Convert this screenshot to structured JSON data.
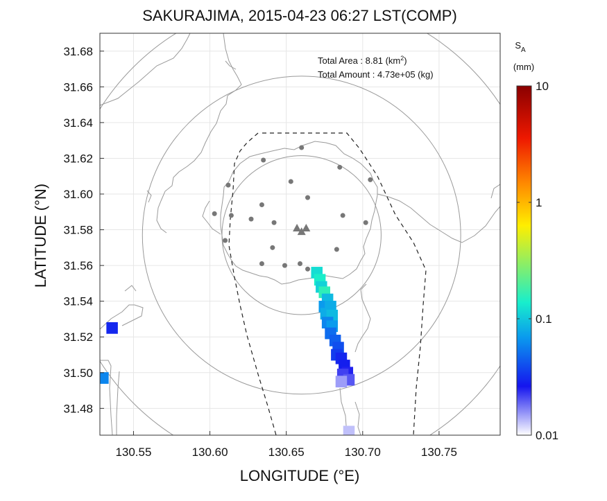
{
  "chart_data": {
    "type": "map",
    "title": "SAKURAJIMA, 2015-04-23 06:27 LST(COMP)",
    "xlabel": "LONGITUDE (°E)",
    "ylabel": "LATITUDE (°N)",
    "xlim": [
      130.528,
      130.79
    ],
    "ylim": [
      31.465,
      31.69
    ],
    "xticks": [
      130.55,
      130.6,
      130.65,
      130.7,
      130.75
    ],
    "xtick_labels": [
      "130.55",
      "130.60",
      "130.65",
      "130.70",
      "130.75"
    ],
    "yticks": [
      31.48,
      31.5,
      31.52,
      31.54,
      31.56,
      31.58,
      31.6,
      31.62,
      31.64,
      31.66,
      31.68
    ],
    "ytick_labels": [
      "31.48",
      "31.50",
      "31.52",
      "31.54",
      "31.56",
      "31.58",
      "31.60",
      "31.62",
      "31.64",
      "31.66",
      "31.68"
    ],
    "grid": true,
    "info": {
      "total_area_label": "Total Area   : 8.81 (km",
      "total_area_sup": "2",
      "total_area_close": ")",
      "total_amount_label": "Total Amount : 4.73e+05 (kg)"
    },
    "colorbar": {
      "title_main": "S",
      "title_sub": "A",
      "unit": "(mm)",
      "scale": "log",
      "min": 0.01,
      "max": 10,
      "tick_values": [
        10,
        1,
        0.1,
        0.01
      ],
      "tick_labels": [
        "10",
        "1",
        "0.1",
        "0.01"
      ],
      "colors": [
        "#ffffff",
        "#1515ee",
        "#0a9aee",
        "#18eecc",
        "#ffee00",
        "#ff8a00",
        "#ee1800",
        "#8a0000"
      ]
    },
    "range_circles_km": [
      {
        "center": [
          130.66,
          31.577
        ],
        "radius_deg_lat": 0.0445
      },
      {
        "center": [
          130.66,
          31.577
        ],
        "radius_deg_lat": 0.089
      },
      {
        "center": [
          130.66,
          31.577
        ],
        "radius_deg_lat": 0.133
      }
    ],
    "volcano_vents": [
      {
        "lon": 130.657,
        "lat": 31.581
      },
      {
        "lon": 130.66,
        "lat": 31.579
      },
      {
        "lon": 130.663,
        "lat": 31.581
      }
    ],
    "stations": [
      {
        "lon": 130.66,
        "lat": 31.626
      },
      {
        "lon": 130.635,
        "lat": 31.619
      },
      {
        "lon": 130.685,
        "lat": 31.615
      },
      {
        "lon": 130.653,
        "lat": 31.607
      },
      {
        "lon": 130.612,
        "lat": 31.605
      },
      {
        "lon": 130.664,
        "lat": 31.598
      },
      {
        "lon": 130.634,
        "lat": 31.594
      },
      {
        "lon": 130.603,
        "lat": 31.589
      },
      {
        "lon": 130.614,
        "lat": 31.588
      },
      {
        "lon": 130.627,
        "lat": 31.586
      },
      {
        "lon": 130.687,
        "lat": 31.588
      },
      {
        "lon": 130.642,
        "lat": 31.584
      },
      {
        "lon": 130.702,
        "lat": 31.584
      },
      {
        "lon": 130.61,
        "lat": 31.574
      },
      {
        "lon": 130.641,
        "lat": 31.57
      },
      {
        "lon": 130.683,
        "lat": 31.569
      },
      {
        "lon": 130.659,
        "lat": 31.561
      },
      {
        "lon": 130.649,
        "lat": 31.56
      },
      {
        "lon": 130.634,
        "lat": 31.561
      },
      {
        "lon": 130.664,
        "lat": 31.558
      },
      {
        "lon": 130.705,
        "lat": 31.608
      }
    ],
    "ash_deposit_cells": [
      {
        "lon": 130.67,
        "lat": 31.556,
        "v": 0.12
      },
      {
        "lon": 130.672,
        "lat": 31.552,
        "v": 0.14
      },
      {
        "lon": 130.673,
        "lat": 31.548,
        "v": 0.11
      },
      {
        "lon": 130.675,
        "lat": 31.545,
        "v": 0.16
      },
      {
        "lon": 130.677,
        "lat": 31.541,
        "v": 0.09
      },
      {
        "lon": 130.675,
        "lat": 31.537,
        "v": 0.07
      },
      {
        "lon": 130.679,
        "lat": 31.537,
        "v": 0.08
      },
      {
        "lon": 130.676,
        "lat": 31.533,
        "v": 0.08
      },
      {
        "lon": 130.68,
        "lat": 31.532,
        "v": 0.09
      },
      {
        "lon": 130.677,
        "lat": 31.528,
        "v": 0.06
      },
      {
        "lon": 130.68,
        "lat": 31.526,
        "v": 0.07
      },
      {
        "lon": 130.679,
        "lat": 31.522,
        "v": 0.05
      },
      {
        "lon": 130.682,
        "lat": 31.518,
        "v": 0.045
      },
      {
        "lon": 130.684,
        "lat": 31.514,
        "v": 0.04
      },
      {
        "lon": 130.683,
        "lat": 31.51,
        "v": 0.035
      },
      {
        "lon": 130.686,
        "lat": 31.508,
        "v": 0.03
      },
      {
        "lon": 130.688,
        "lat": 31.504,
        "v": 0.028
      },
      {
        "lon": 130.69,
        "lat": 31.5,
        "v": 0.025
      },
      {
        "lon": 130.687,
        "lat": 31.499,
        "v": 0.022
      },
      {
        "lon": 130.691,
        "lat": 31.496,
        "v": 0.02
      },
      {
        "lon": 130.686,
        "lat": 31.495,
        "v": 0.015
      },
      {
        "lon": 130.536,
        "lat": 31.525,
        "v": 0.03
      },
      {
        "lon": 130.53,
        "lat": 31.497,
        "v": 0.06
      },
      {
        "lon": 130.691,
        "lat": 31.467,
        "v": 0.013
      }
    ]
  }
}
